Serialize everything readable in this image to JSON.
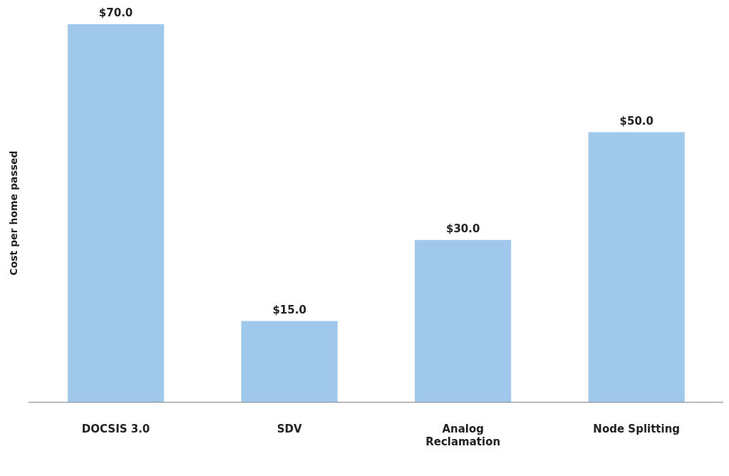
{
  "chart_data": {
    "type": "bar",
    "ylabel": "Cost per home passed",
    "categories": [
      "DOCSIS 3.0",
      "SDV",
      "Analog Reclamation",
      "Node Splitting"
    ],
    "values": [
      70,
      15,
      30,
      50
    ],
    "color": "#9fc8ea",
    "value_labels": [
      "$70.0",
      "$15.0",
      "$30.0",
      "$50.0"
    ],
    "grid": false,
    "legend": false
  }
}
